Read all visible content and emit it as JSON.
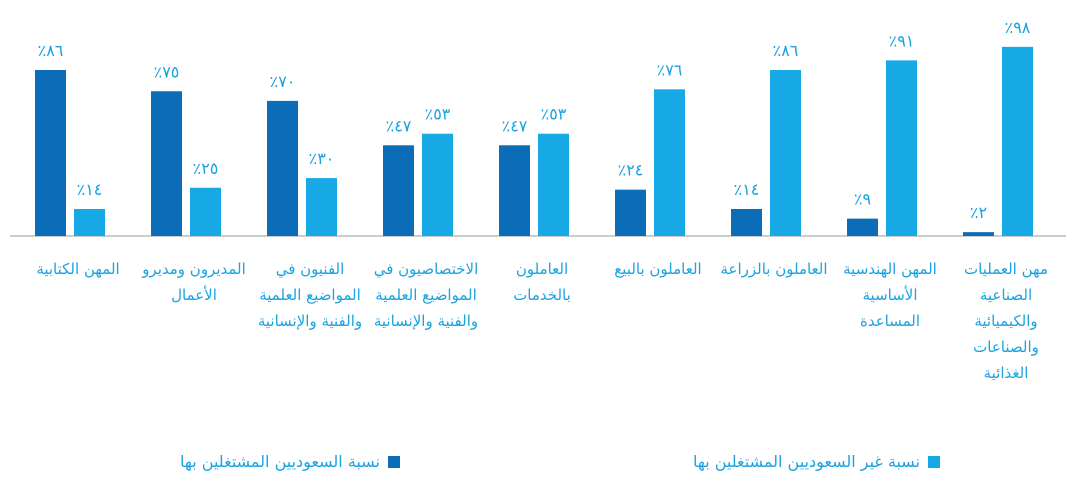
{
  "chart_data": {
    "type": "bar",
    "categories": [
      "مهن العمليات الصناعية والكيميائية والصناعات الغذائية",
      "المهن الهندسية الأساسية المساعدة",
      "العاملون بالزراعة",
      "العاملون بالبيع",
      "العاملون بالخدمات",
      "الاختصاصيون في المواضيع العلمية والفنية والإنسانية",
      "الفنيون في المواضيع العلمية والفنية والإنسانية",
      "المديرون ومديرو الأعمال",
      "المهن الكتابية"
    ],
    "series": [
      {
        "name": "نسبة السعوديين المشتغلين بها",
        "color": "#0b6cb8",
        "values": [
          2,
          9,
          14,
          24,
          47,
          47,
          70,
          75,
          86
        ],
        "value_labels": [
          "٪٢",
          "٪٩",
          "٪١٤",
          "٪٢٤",
          "٪٤٧",
          "٪٤٧",
          "٪٧٠",
          "٪٧٥",
          "٪٨٦"
        ]
      },
      {
        "name": "نسبة غير السعوديين المشتغلين بها",
        "color": "#17a9e6",
        "values": [
          98,
          91,
          86,
          76,
          53,
          53,
          30,
          25,
          14
        ],
        "value_labels": [
          "٪٩٨",
          "٪٩١",
          "٪٨٦",
          "٪٧٦",
          "٪٥٣",
          "٪٥٣",
          "٪٣٠",
          "٪٢٥",
          "٪١٤"
        ]
      }
    ],
    "ylim": [
      0,
      100
    ]
  }
}
